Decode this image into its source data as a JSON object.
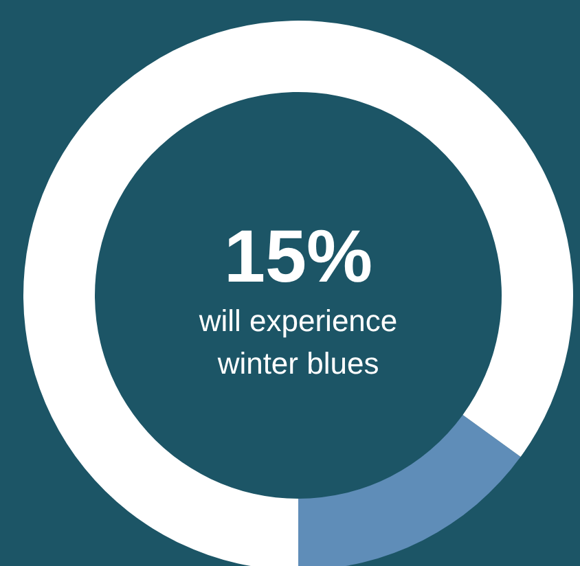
{
  "chart_data": {
    "type": "donut",
    "categories": [
      "will experience winter blues",
      null
    ],
    "values": [
      15,
      85
    ],
    "colors": [
      "#5f8db8",
      "#ffffff"
    ],
    "value_labels": [
      "15%",
      null
    ]
  }
}
